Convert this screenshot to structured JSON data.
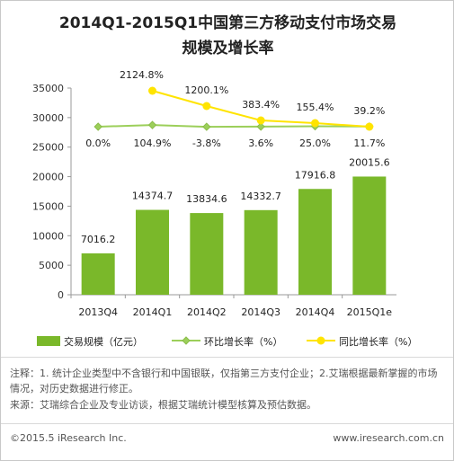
{
  "title_line1": "2014Q1-2015Q1中国第三方移动支付市场交易",
  "title_line2": "规模及增长率",
  "chart_data": {
    "type": "bar",
    "categories": [
      "2013Q4",
      "2014Q1",
      "2014Q2",
      "2014Q3",
      "2014Q4",
      "2015Q1e"
    ],
    "series": [
      {
        "name": "交易规模（亿元）",
        "type": "bar",
        "values": [
          7016.2,
          14374.7,
          13834.6,
          14332.7,
          17916.8,
          20015.6
        ],
        "color": "#7ab82a"
      },
      {
        "name": "环比增长率（%）",
        "type": "line",
        "values": [
          0.0,
          104.9,
          -3.8,
          3.6,
          25.0,
          11.7
        ],
        "labels": [
          "0.0%",
          "104.9%",
          "-3.8%",
          "3.6%",
          "25.0%",
          "11.7%"
        ],
        "color": "#9ccf5a"
      },
      {
        "name": "同比增长率（%）",
        "type": "line",
        "values": [
          null,
          2124.8,
          1200.1,
          383.4,
          155.4,
          39.2
        ],
        "labels": [
          "",
          "2124.8%",
          "1200.1%",
          "383.4%",
          "155.4%",
          "39.2%"
        ],
        "color": "#ffe400"
      }
    ],
    "yticks": [
      "0",
      "5000",
      "10000",
      "15000",
      "20000",
      "25000",
      "30000",
      "35000"
    ],
    "ylim": [
      0,
      35000
    ]
  },
  "legend": {
    "bar_label": "交易规模（亿元）",
    "mom_label": "环比增长率（%）",
    "yoy_label": "同比增长率（%）"
  },
  "notes": {
    "line1": "注释：1. 统计企业类型中不含银行和中国银联，仅指第三方支付企业；2.艾瑞根据最新掌握的市场情况，对历史数据进行修正。",
    "line2": "来源：艾瑞综合企业及专业访谈，根据艾瑞统计模型核算及预估数据。"
  },
  "footer": {
    "left": "©2015.5 iResearch Inc.",
    "right": "www.iresearch.com.cn"
  }
}
